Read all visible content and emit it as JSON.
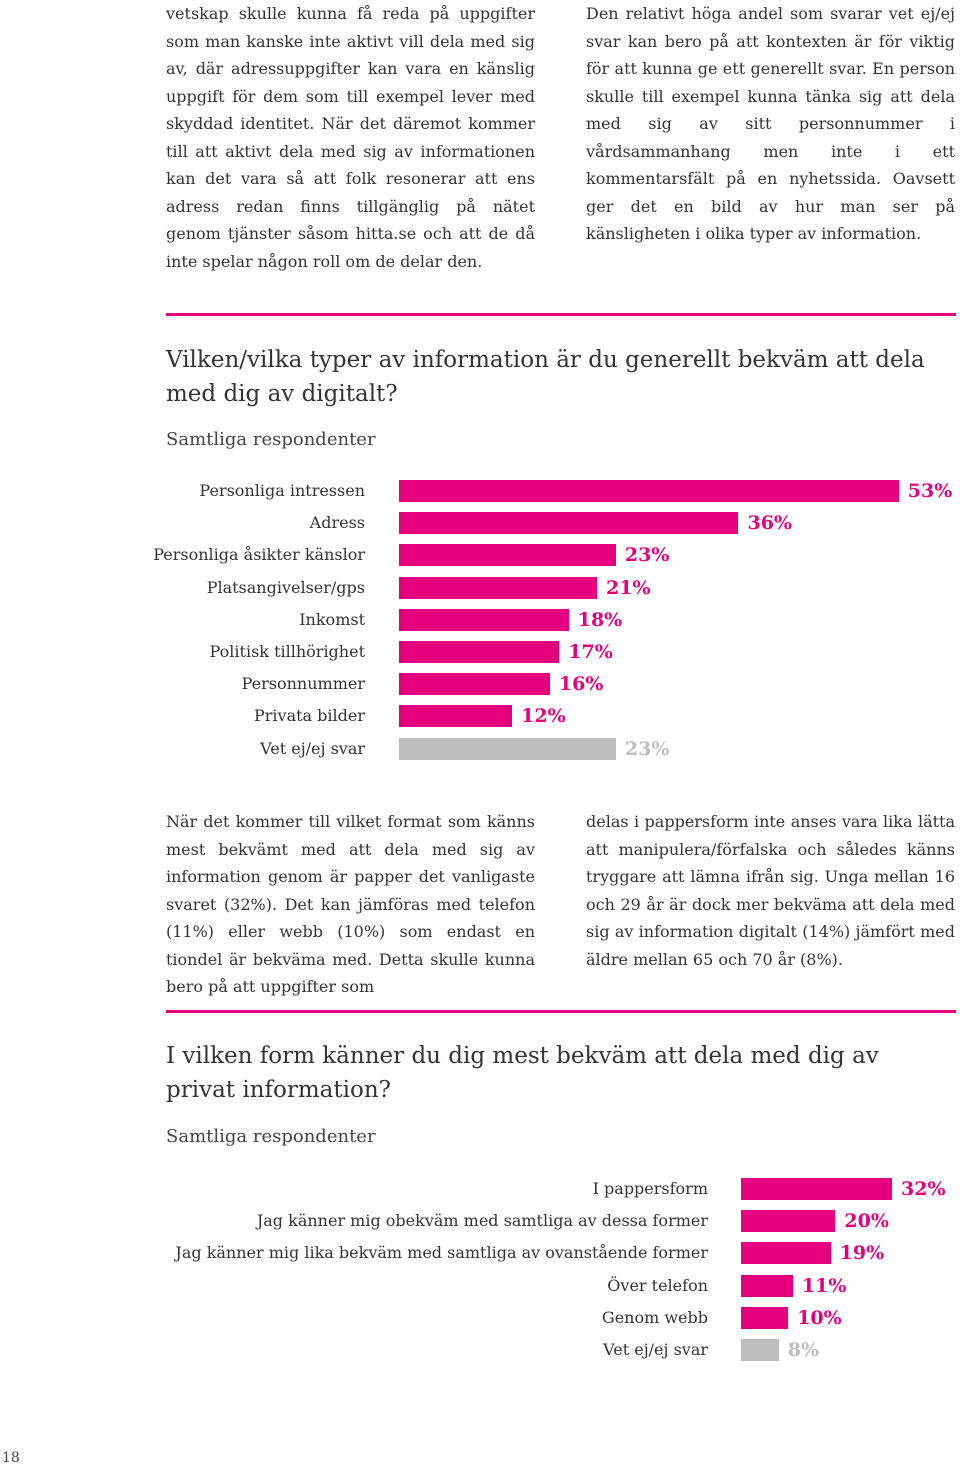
{
  "top_left_text": "vetskap skulle kunna få reda på uppgifter som man kanske inte aktivt vill dela med sig av, där adressuppgifter kan vara en känslig uppgift för dem som till exempel lever med skyddad identitet. När det däremot kommer till att aktivt dela med sig av informationen kan det vara så att folk resonerar att ens adress redan finns tillgänglig på nätet genom tjänster såsom hitta.se och att de då inte spelar någon roll om de delar den.",
  "top_right_text": "Den relativt höga andel som svarar vet ej/ej svar kan bero på att kontexten är för viktig för att kunna ge ett generellt svar. En person skulle till exempel kunna tänka sig att dela med sig av sitt personnummer i vårdsammanhang men inte i ett kommentarsfält på en nyhetssida. Oavsett ger det en bild av hur man ser på känsligheten i olika typer av information.",
  "mid_left_text": "När det kommer till vilket format som känns mest bekvämt med att dela med sig av information genom är papper det vanligaste svaret (32%). Det kan jämföras med telefon (11%) eller webb (10%) som endast en tiondel är bekväma med. Detta skulle kunna bero på att uppgifter som",
  "mid_right_text": "delas i pappersform inte anses vara lika lätta att manipulera/förfalska och således känns tryggare att lämna ifrån sig. Unga mellan 16 och 29 år är dock mer bekväma att dela med sig av information digitalt (14%) jämfört med äldre mellan 65 och 70 år (8%).",
  "page_number": "18",
  "colors": {
    "accent": "#e6007e",
    "neutral": "#bdbdbe"
  },
  "chart_data": [
    {
      "type": "bar",
      "title": "Vilken/vilka typer av information är du generellt bekväm att dela med dig av digitalt?",
      "subtitle": "Samtliga respondenter",
      "categories": [
        "Personliga intressen",
        "Adress",
        "Personliga åsikter känslor",
        "Platsangivelser/gps",
        "Inkomst",
        "Politisk tillhörighet",
        "Personnummer",
        "Privata bilder",
        "Vet ej/ej svar"
      ],
      "values": [
        53,
        36,
        23,
        21,
        18,
        17,
        16,
        12,
        23
      ],
      "value_labels": [
        "53%",
        "36%",
        "23%",
        "21%",
        "18%",
        "17%",
        "16%",
        "12%",
        "23%"
      ],
      "orientation": "horizontal",
      "grid": false
    },
    {
      "type": "bar",
      "title": "I vilken form känner du dig mest bekväm att dela med dig av privat information?",
      "subtitle": "Samtliga respondenter",
      "categories": [
        "I pappersform",
        "Jag känner mig obekväm med samtliga av dessa former",
        "Jag känner mig lika bekväm med samtliga av ovanstående former",
        "Över telefon",
        "Genom webb",
        "Vet ej/ej svar"
      ],
      "values": [
        32,
        20,
        19,
        11,
        10,
        8
      ],
      "value_labels": [
        "32%",
        "20%",
        "19%",
        "11%",
        "10%",
        "8%"
      ],
      "orientation": "horizontal",
      "grid": false
    }
  ]
}
